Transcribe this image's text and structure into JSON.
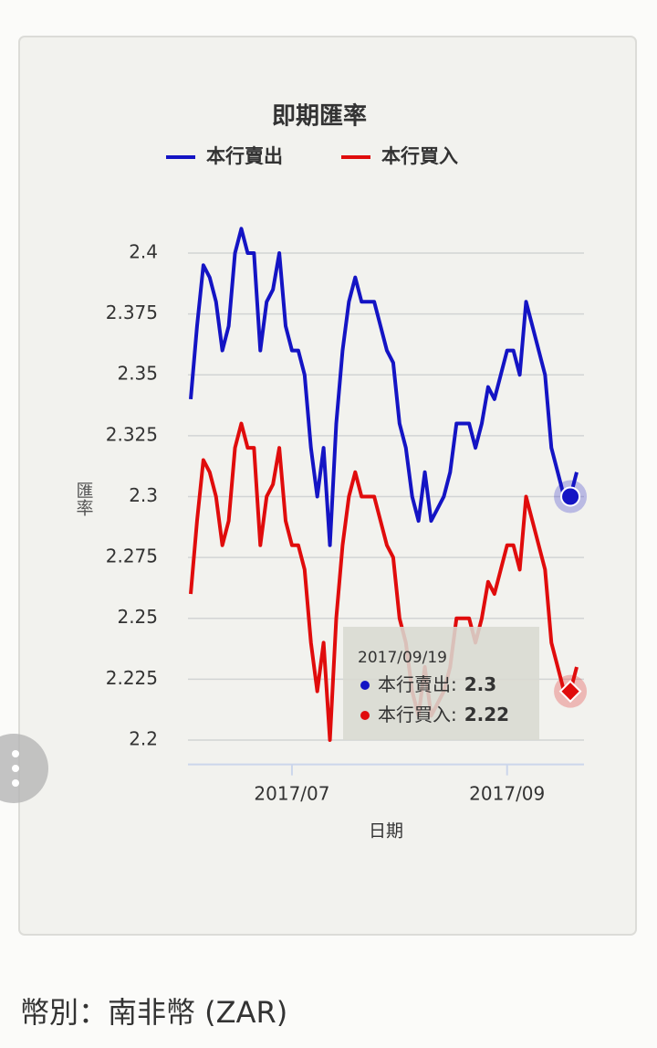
{
  "chart_data": {
    "type": "line",
    "title": "即期匯率",
    "x_label": "日期",
    "y_label": "匯率",
    "categories": [
      null,
      null,
      null,
      null,
      null,
      null,
      null,
      null,
      null,
      null,
      null,
      null,
      null,
      null,
      null,
      null,
      "2017/07",
      null,
      null,
      null,
      null,
      null,
      null,
      null,
      null,
      null,
      null,
      null,
      null,
      null,
      null,
      null,
      null,
      null,
      null,
      null,
      null,
      null,
      null,
      null,
      null,
      null,
      null,
      null,
      null,
      null,
      null,
      null,
      null,
      null,
      "2017/09",
      null,
      null,
      null,
      null,
      null,
      null,
      null,
      null,
      null,
      null,
      null
    ],
    "series": [
      {
        "name": "本行賣出",
        "color": "#1414c4",
        "values": [
          2.34,
          2.37,
          2.395,
          2.39,
          2.38,
          2.36,
          2.37,
          2.4,
          2.41,
          2.4,
          2.4,
          2.36,
          2.38,
          2.385,
          2.4,
          2.37,
          2.36,
          2.36,
          2.35,
          2.32,
          2.3,
          2.32,
          2.28,
          2.33,
          2.36,
          2.38,
          2.39,
          2.38,
          2.38,
          2.38,
          2.37,
          2.36,
          2.355,
          2.33,
          2.32,
          2.3,
          2.29,
          2.31,
          2.29,
          2.295,
          2.3,
          2.31,
          2.33,
          2.33,
          2.33,
          2.32,
          2.33,
          2.345,
          2.34,
          2.35,
          2.36,
          2.36,
          2.35,
          2.38,
          2.37,
          2.36,
          2.35,
          2.32,
          2.31,
          2.3,
          2.3,
          2.31
        ]
      },
      {
        "name": "本行買入",
        "color": "#e00c0c",
        "values": [
          2.26,
          2.29,
          2.315,
          2.31,
          2.3,
          2.28,
          2.29,
          2.32,
          2.33,
          2.32,
          2.32,
          2.28,
          2.3,
          2.305,
          2.32,
          2.29,
          2.28,
          2.28,
          2.27,
          2.24,
          2.22,
          2.24,
          2.2,
          2.25,
          2.28,
          2.3,
          2.31,
          2.3,
          2.3,
          2.3,
          2.29,
          2.28,
          2.275,
          2.25,
          2.24,
          2.22,
          2.21,
          2.23,
          2.21,
          2.215,
          2.22,
          2.23,
          2.25,
          2.25,
          2.25,
          2.24,
          2.25,
          2.265,
          2.26,
          2.27,
          2.28,
          2.28,
          2.27,
          2.3,
          2.29,
          2.28,
          2.27,
          2.24,
          2.23,
          2.22,
          2.22,
          2.23
        ]
      }
    ],
    "ylim": [
      2.19,
      2.415
    ],
    "yticks": [
      2.2,
      2.225,
      2.25,
      2.275,
      2.3,
      2.325,
      2.35,
      2.375,
      2.4
    ],
    "grid": true,
    "tooltip": {
      "title": "2017/09/19",
      "index": 60,
      "separator": ":"
    }
  },
  "footer": "幣別：南非幣 (ZAR)"
}
